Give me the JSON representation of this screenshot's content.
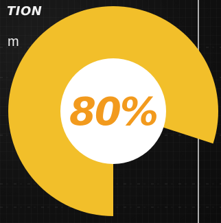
{
  "header": {
    "title": "TION",
    "subtitle": "m"
  },
  "chart_data": {
    "type": "pie",
    "values": [
      80,
      20
    ],
    "value_label": "80%",
    "colors": {
      "filled": "#f2bf2a",
      "remaining": "#131313",
      "center": "#ffffff",
      "label": "#f29a1d"
    }
  }
}
